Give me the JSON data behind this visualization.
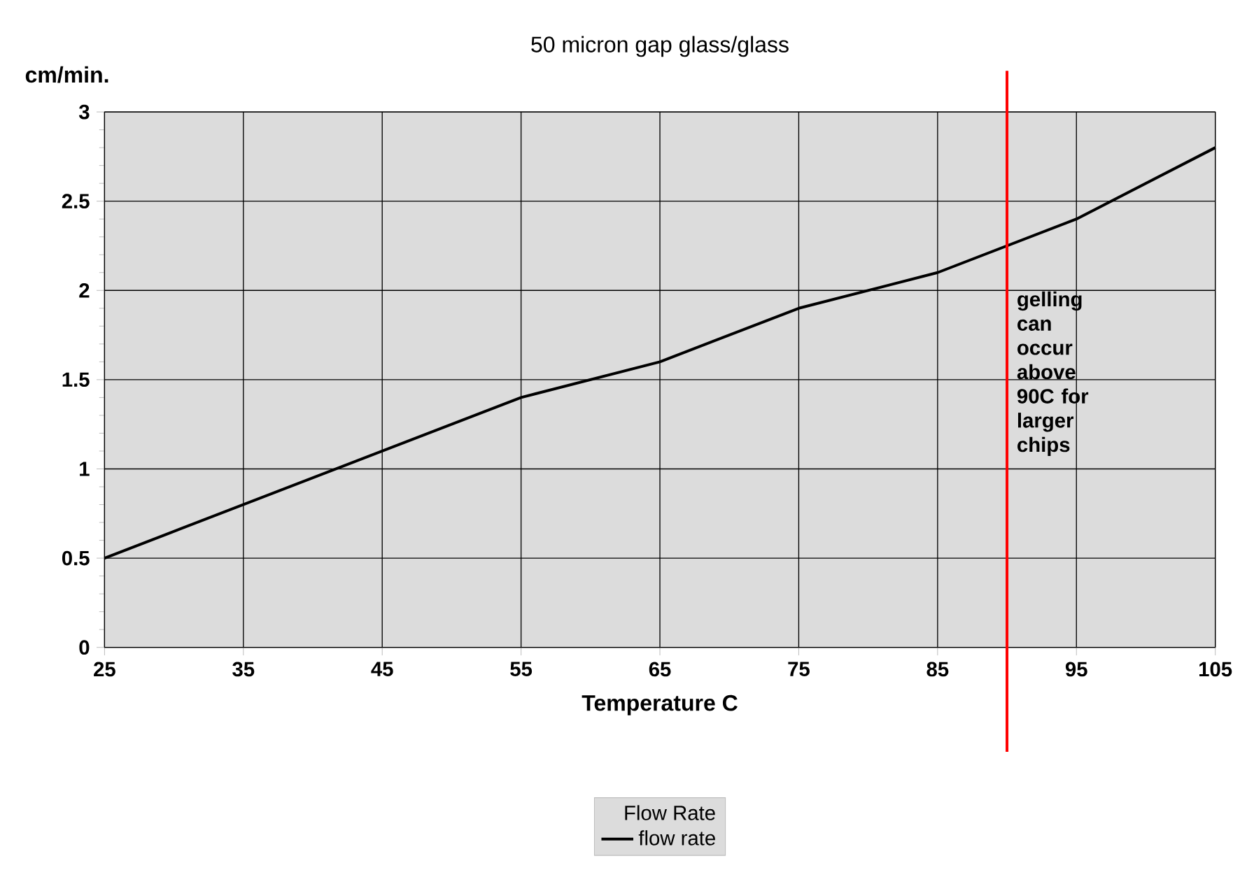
{
  "chart_data": {
    "type": "line",
    "title": "50 micron gap glass/glass",
    "xlabel": "Temperature C",
    "ylabel": "cm/min.",
    "legend_title": "Flow Rate",
    "x": [
      25,
      35,
      45,
      55,
      65,
      75,
      85,
      95,
      105
    ],
    "series": [
      {
        "name": "flow rate",
        "color": "#000000",
        "values": [
          0.5,
          0.8,
          1.1,
          1.4,
          1.6,
          1.9,
          2.1,
          2.4,
          2.8
        ]
      }
    ],
    "xlim": [
      25,
      105
    ],
    "xticks": [
      25,
      35,
      45,
      55,
      65,
      75,
      85,
      95,
      105
    ],
    "ylim": [
      0,
      3
    ],
    "yticks": [
      0,
      0.5,
      1,
      1.5,
      2,
      2.5,
      3
    ],
    "grid": true,
    "legend": "bottom",
    "marker": "none",
    "line_style": "solid",
    "ref_lines": [
      {
        "axis": "x",
        "value": 90,
        "label": "gelling can occur above 90C for larger chips",
        "color": "#ff0000"
      }
    ]
  }
}
